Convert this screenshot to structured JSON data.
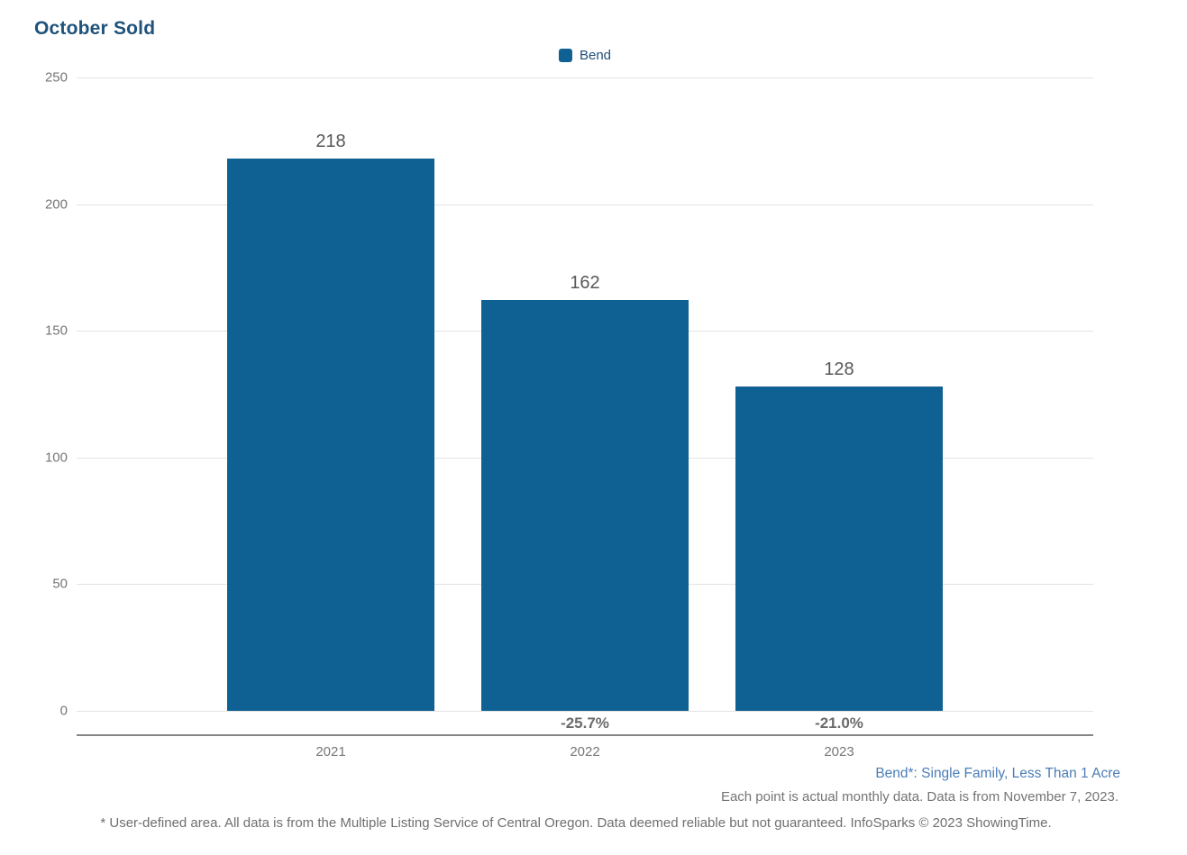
{
  "title": "October Sold",
  "legend": {
    "label": "Bend",
    "swatch_color": "#0f6193"
  },
  "chart_data": {
    "type": "bar",
    "title": "October Sold",
    "categories": [
      "2021",
      "2022",
      "2023"
    ],
    "series": [
      {
        "name": "Bend",
        "values": [
          218,
          162,
          128
        ],
        "color": "#0f6193"
      }
    ],
    "pct_change_labels": [
      "",
      "-25.7%",
      "-21.0%"
    ],
    "xlabel": "",
    "ylabel": "",
    "ylim": [
      0,
      250
    ],
    "yticks": [
      250,
      200,
      150,
      100,
      50,
      0
    ],
    "grid": true,
    "legend_position": "top-center",
    "value_labels_shown": true
  },
  "footnotes": {
    "series_note": "Bend*: Single Family, Less Than 1 Acre",
    "data_note": "Each point is actual monthly data. Data is from November 7, 2023.",
    "disclaimer": "* User-defined area. All data is from the Multiple Listing Service of Central Oregon. Data deemed reliable but not guaranteed. InfoSparks © 2023 ShowingTime."
  },
  "colors": {
    "title_text": "#1f527a",
    "bar": "#0f6193",
    "legend_text": "#1f4e78",
    "axis_tick_text": "#767676",
    "value_label_text": "#57585a",
    "pct_label_text": "#6b6b6b",
    "gridline": "#e3e3e3",
    "axis_line": "#858585",
    "series_note_text": "#4b7db6",
    "footnote_text": "#6f6f6f"
  }
}
